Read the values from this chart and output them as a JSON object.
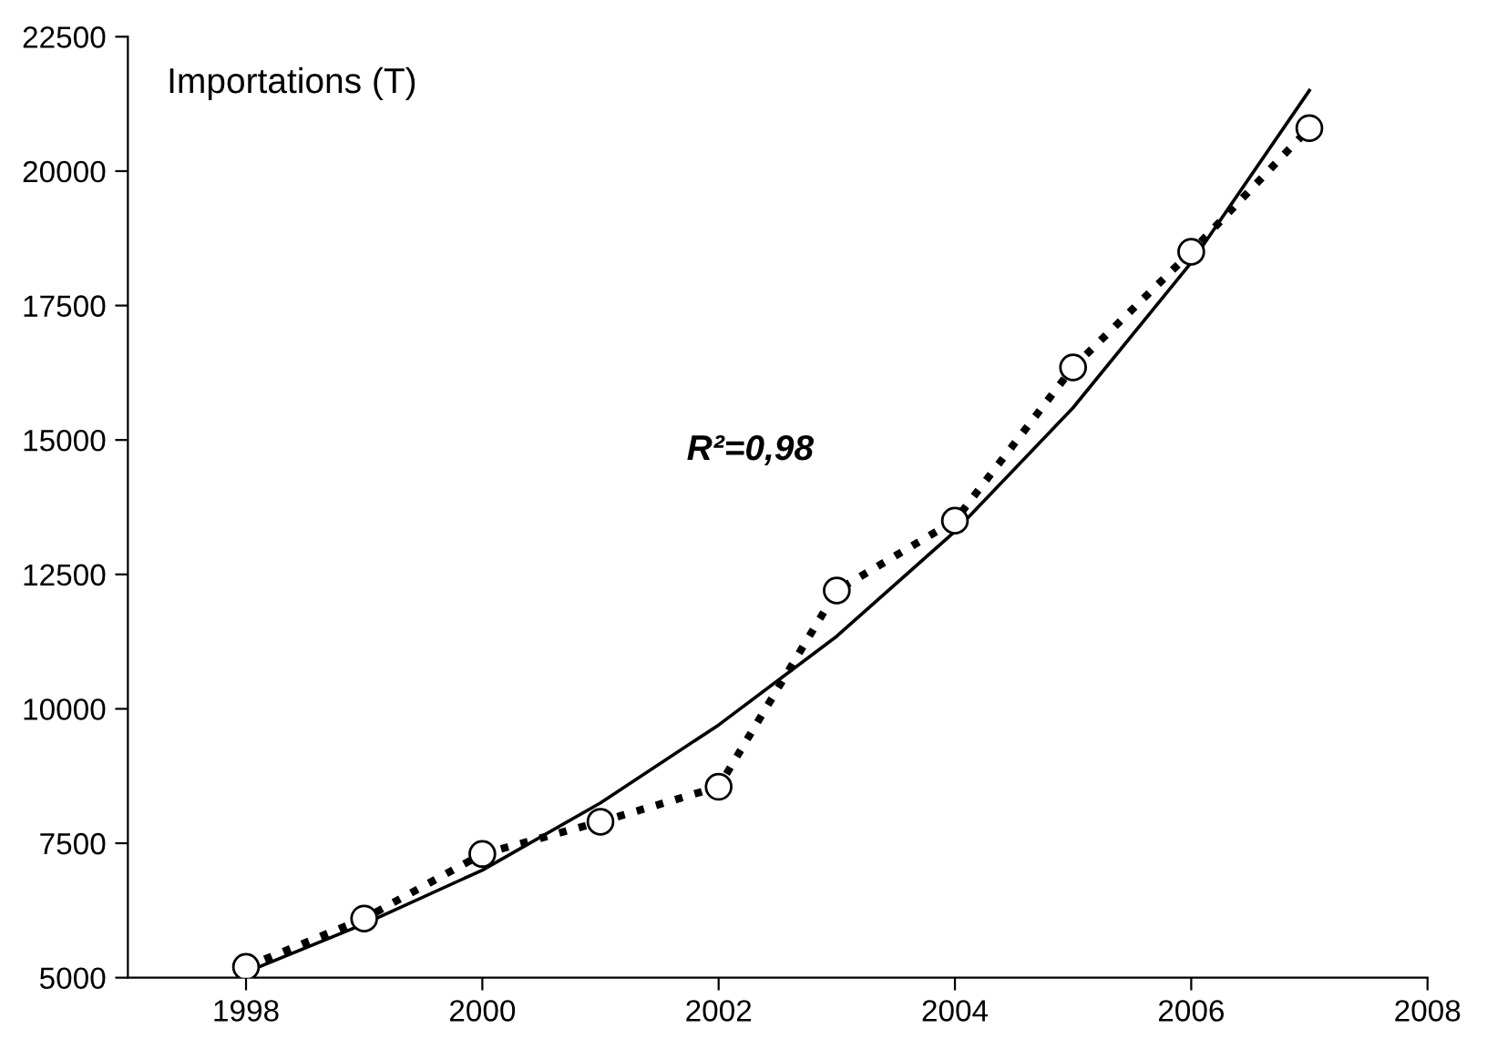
{
  "chart_data": {
    "type": "line",
    "annotations": [
      "Importations (T)",
      "R²=0,98"
    ],
    "x": [
      1998,
      1999,
      2000,
      2001,
      2002,
      2003,
      2004,
      2005,
      2006,
      2007
    ],
    "series": [
      {
        "color": "#000000",
        "marker": "circle",
        "line_style": "dotted",
        "values": [
          5200,
          6100,
          7300,
          7900,
          8550,
          12200,
          13500,
          16350,
          18500,
          20800
        ]
      },
      {
        "color": "#000000",
        "marker": "none",
        "line_style": "solid",
        "values": [
          5100,
          6000,
          7000,
          8250,
          9700,
          11350,
          13300,
          15600,
          18300,
          21500
        ]
      }
    ],
    "xlim": [
      1997,
      2008
    ],
    "xticks": [
      1998,
      2000,
      2002,
      2004,
      2006,
      2008
    ],
    "ylim": [
      5000,
      22500
    ],
    "yticks": [
      5000,
      7500,
      10000,
      12500,
      15000,
      17500,
      20000,
      22500
    ],
    "grid": false
  }
}
